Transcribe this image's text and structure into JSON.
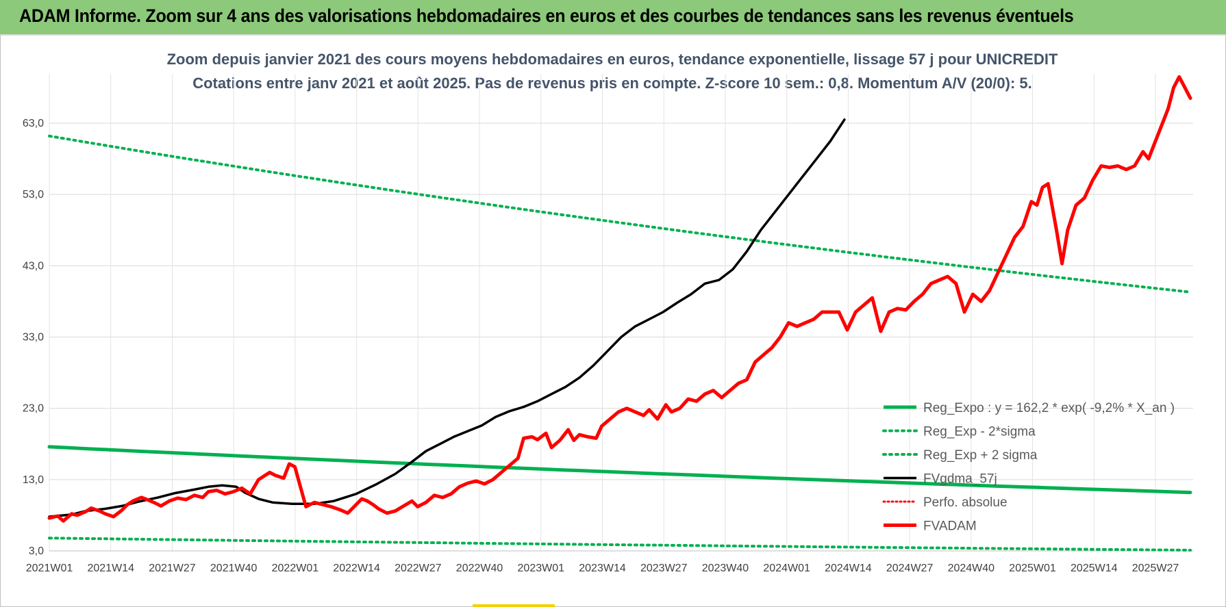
{
  "banner": {
    "title": "ADAM Informe. Zoom sur 4 ans des valorisations hebdomadaires en euros et des courbes de tendances sans les revenus éventuels"
  },
  "chart_data": {
    "type": "line",
    "title_line1": "Zoom depuis janvier 2021 des cours moyens hebdomadaires en euros, tendance exponentielle, lissage 57 j pour UNICREDIT",
    "title_line2": "Cotations entre janv 2021 et août 2025. Pas de revenus pris en compte. Z-score 10 sem.: 0,8. Momentum A/V (20/0): 5.",
    "ylim": [
      3,
      70
    ],
    "y_ticks": [
      "3,0",
      "13,0",
      "23,0",
      "33,0",
      "43,0",
      "53,0",
      "63,0"
    ],
    "x_ticks": [
      "2021W01",
      "2021W14",
      "2021W27",
      "2021W40",
      "2022W01",
      "2022W14",
      "2022W27",
      "2022W40",
      "2023W01",
      "2023W14",
      "2023W27",
      "2023W40",
      "2024W01",
      "2024W14",
      "2024W27",
      "2024W40",
      "2025W01",
      "2025W14",
      "2025W27"
    ],
    "x_range_weeks": [
      0,
      243
    ],
    "grid": true,
    "legend_position": "bottom-right",
    "colors": {
      "green": "#00b050",
      "black": "#000000",
      "red": "#ff0000"
    },
    "series": [
      {
        "name": "Reg_Expo : y = 162,2 * exp( -9,2% *  X_an )",
        "style": "solid-green",
        "points": [
          [
            0,
            17.6
          ],
          [
            243,
            11.2
          ]
        ]
      },
      {
        "name": "Reg_Exp - 2*sigma",
        "style": "dotted-green",
        "points": [
          [
            0,
            4.8
          ],
          [
            243,
            3.1
          ]
        ]
      },
      {
        "name": "Reg_Exp + 2 sigma",
        "style": "dotted-green",
        "points": [
          [
            0,
            61.2
          ],
          [
            243,
            39.3
          ]
        ]
      },
      {
        "name": "FVgdma_57j",
        "style": "solid-black",
        "points": [
          [
            0,
            7.8
          ],
          [
            8,
            8.1
          ],
          [
            13,
            8.6
          ],
          [
            20,
            8.9
          ],
          [
            26,
            9.3
          ],
          [
            32,
            9.9
          ],
          [
            39,
            10.5
          ],
          [
            45,
            11.1
          ],
          [
            52,
            11.6
          ],
          [
            57,
            12.0
          ],
          [
            62,
            12.2
          ],
          [
            67,
            12.0
          ],
          [
            70,
            11.2
          ],
          [
            75,
            10.3
          ],
          [
            80,
            9.8
          ],
          [
            87,
            9.6
          ],
          [
            95,
            9.6
          ],
          [
            102,
            10.0
          ],
          [
            110,
            11.0
          ],
          [
            117,
            12.3
          ],
          [
            124,
            13.8
          ],
          [
            130,
            15.5
          ],
          [
            135,
            17.0
          ],
          [
            140,
            18.0
          ],
          [
            145,
            19.0
          ],
          [
            150,
            19.8
          ],
          [
            155,
            20.6
          ],
          [
            160,
            21.8
          ],
          [
            165,
            22.6
          ],
          [
            170,
            23.2
          ],
          [
            175,
            24.0
          ],
          [
            180,
            25.0
          ],
          [
            185,
            26.0
          ],
          [
            190,
            27.3
          ],
          [
            195,
            29.0
          ],
          [
            200,
            31.0
          ],
          [
            205,
            33.0
          ],
          [
            210,
            34.5
          ],
          [
            215,
            35.5
          ],
          [
            220,
            36.5
          ],
          [
            225,
            37.8
          ],
          [
            230,
            39.0
          ],
          [
            235,
            40.5
          ],
          [
            240,
            41.0
          ],
          [
            245,
            42.5
          ],
          [
            250,
            45.0
          ],
          [
            255,
            48.0
          ],
          [
            260,
            50.5
          ],
          [
            265,
            53.0
          ],
          [
            270,
            55.5
          ],
          [
            275,
            58.0
          ],
          [
            280,
            60.5
          ],
          [
            285,
            63.5
          ]
        ]
      },
      {
        "name": "Perfo. absolue",
        "style": "dotted-red",
        "points": []
      },
      {
        "name": "FVADAM",
        "style": "solid-red-thick",
        "points": [
          [
            0,
            7.6
          ],
          [
            3,
            7.9
          ],
          [
            5,
            7.2
          ],
          [
            8,
            8.2
          ],
          [
            10,
            8.0
          ],
          [
            13,
            8.5
          ],
          [
            15,
            9.0
          ],
          [
            18,
            8.6
          ],
          [
            20,
            8.2
          ],
          [
            23,
            7.8
          ],
          [
            26,
            8.7
          ],
          [
            28,
            9.5
          ],
          [
            30,
            10.0
          ],
          [
            33,
            10.5
          ],
          [
            35,
            10.2
          ],
          [
            38,
            9.7
          ],
          [
            40,
            9.3
          ],
          [
            43,
            10.0
          ],
          [
            46,
            10.4
          ],
          [
            49,
            10.2
          ],
          [
            52,
            10.8
          ],
          [
            55,
            10.5
          ],
          [
            57,
            11.3
          ],
          [
            60,
            11.5
          ],
          [
            63,
            11.0
          ],
          [
            66,
            11.3
          ],
          [
            69,
            11.8
          ],
          [
            72,
            11.0
          ],
          [
            75,
            13.0
          ],
          [
            77,
            13.5
          ],
          [
            79,
            14.0
          ],
          [
            81,
            13.6
          ],
          [
            84,
            13.2
          ],
          [
            86,
            15.2
          ],
          [
            88,
            14.8
          ],
          [
            90,
            12.0
          ],
          [
            92,
            9.2
          ],
          [
            95,
            9.8
          ],
          [
            98,
            9.5
          ],
          [
            101,
            9.2
          ],
          [
            104,
            8.8
          ],
          [
            107,
            8.3
          ],
          [
            110,
            9.5
          ],
          [
            112,
            10.3
          ],
          [
            114,
            10.0
          ],
          [
            116,
            9.5
          ],
          [
            118,
            8.9
          ],
          [
            121,
            8.3
          ],
          [
            124,
            8.6
          ],
          [
            127,
            9.3
          ],
          [
            130,
            10.0
          ],
          [
            132,
            9.2
          ],
          [
            135,
            9.8
          ],
          [
            138,
            10.8
          ],
          [
            141,
            10.5
          ],
          [
            144,
            11.0
          ],
          [
            147,
            12.0
          ],
          [
            150,
            12.5
          ],
          [
            153,
            12.8
          ],
          [
            156,
            12.4
          ],
          [
            159,
            13.0
          ],
          [
            162,
            14.0
          ],
          [
            165,
            15.0
          ],
          [
            168,
            16.0
          ],
          [
            170,
            18.8
          ],
          [
            173,
            19.0
          ],
          [
            175,
            18.6
          ],
          [
            178,
            19.5
          ],
          [
            180,
            17.5
          ],
          [
            183,
            18.5
          ],
          [
            186,
            20.0
          ],
          [
            188,
            18.5
          ],
          [
            190,
            19.3
          ],
          [
            193,
            19.0
          ],
          [
            196,
            18.8
          ],
          [
            198,
            20.5
          ],
          [
            201,
            21.5
          ],
          [
            204,
            22.5
          ],
          [
            207,
            23.0
          ],
          [
            210,
            22.5
          ],
          [
            213,
            22.0
          ],
          [
            215,
            22.8
          ],
          [
            218,
            21.5
          ],
          [
            221,
            23.5
          ],
          [
            223,
            22.5
          ],
          [
            226,
            23.0
          ],
          [
            229,
            24.3
          ],
          [
            232,
            24.0
          ],
          [
            235,
            25.0
          ],
          [
            238,
            25.5
          ],
          [
            241,
            24.5
          ],
          [
            244,
            25.5
          ],
          [
            247,
            26.5
          ],
          [
            250,
            27.0
          ],
          [
            253,
            29.5
          ],
          [
            256,
            30.5
          ],
          [
            259,
            31.5
          ],
          [
            262,
            33.0
          ],
          [
            265,
            35.0
          ],
          [
            268,
            34.5
          ],
          [
            271,
            35.0
          ],
          [
            274,
            35.5
          ],
          [
            277,
            36.5
          ],
          [
            280,
            36.5
          ],
          [
            283,
            36.5
          ],
          [
            286,
            34.0
          ],
          [
            289,
            36.5
          ],
          [
            292,
            37.5
          ],
          [
            295,
            38.5
          ],
          [
            298,
            33.8
          ],
          [
            301,
            36.5
          ],
          [
            304,
            37.0
          ],
          [
            307,
            36.8
          ],
          [
            310,
            38.0
          ],
          [
            313,
            39.0
          ],
          [
            316,
            40.5
          ],
          [
            319,
            41.0
          ],
          [
            322,
            41.5
          ],
          [
            325,
            40.5
          ],
          [
            328,
            36.5
          ],
          [
            331,
            39.0
          ],
          [
            334,
            38.0
          ],
          [
            337,
            39.5
          ],
          [
            340,
            42.0
          ],
          [
            343,
            44.5
          ],
          [
            346,
            47.0
          ],
          [
            349,
            48.5
          ],
          [
            352,
            52.0
          ],
          [
            354,
            51.5
          ],
          [
            356,
            54.0
          ],
          [
            358,
            54.5
          ],
          [
            361,
            48.0
          ],
          [
            363,
            43.3
          ],
          [
            365,
            48.0
          ],
          [
            368,
            51.5
          ],
          [
            371,
            52.5
          ],
          [
            374,
            55.0
          ],
          [
            377,
            57.0
          ],
          [
            380,
            56.8
          ],
          [
            383,
            57.0
          ],
          [
            386,
            56.5
          ],
          [
            389,
            57.0
          ],
          [
            392,
            59.0
          ],
          [
            394,
            58.0
          ],
          [
            396,
            60.0
          ],
          [
            398,
            62.0
          ],
          [
            401,
            65.0
          ],
          [
            403,
            68.0
          ],
          [
            405,
            69.5
          ],
          [
            407,
            68.0
          ],
          [
            409,
            66.5
          ]
        ]
      }
    ]
  }
}
